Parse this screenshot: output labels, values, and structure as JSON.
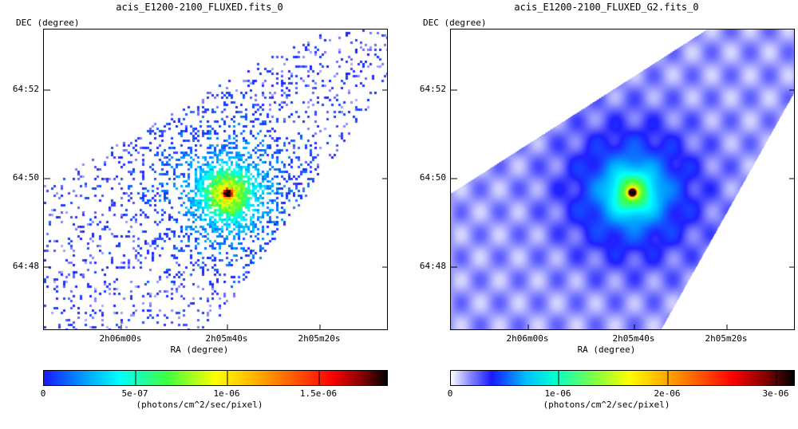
{
  "panels": [
    {
      "title": "acis_E1200-2100_FLUXED.fits_0",
      "ylabel": "DEC (degree)",
      "xlabel": "RA (degree)",
      "yticks": [
        "64:52",
        "64:50",
        "64:48"
      ],
      "xticks": [
        "2h06m00s",
        "2h05m40s",
        "2h05m20s"
      ],
      "colorbar_ticks": [
        "0",
        "5e-07",
        "1e-06",
        "1.5e-06"
      ],
      "colorbar_unit": "(photons/cm^2/sec/pixel)",
      "style": "pixelated"
    },
    {
      "title": "acis_E1200-2100_FLUXED_G2.fits_0",
      "ylabel": "DEC (degree)",
      "xlabel": "RA (degree)",
      "yticks": [
        "64:52",
        "64:50",
        "64:48"
      ],
      "xticks": [
        "2h06m00s",
        "2h05m40s",
        "2h05m20s"
      ],
      "colorbar_ticks": [
        "0",
        "1e-06",
        "2e-06",
        "3e-06"
      ],
      "colorbar_unit": "(photons/cm^2/sec/pixel)",
      "style": "smoothed"
    }
  ],
  "colormap": [
    "#ffffff",
    "#2020ff",
    "#00a0ff",
    "#00ffff",
    "#40ff40",
    "#ffff00",
    "#ff8000",
    "#ff0000",
    "#800000",
    "#000000"
  ]
}
